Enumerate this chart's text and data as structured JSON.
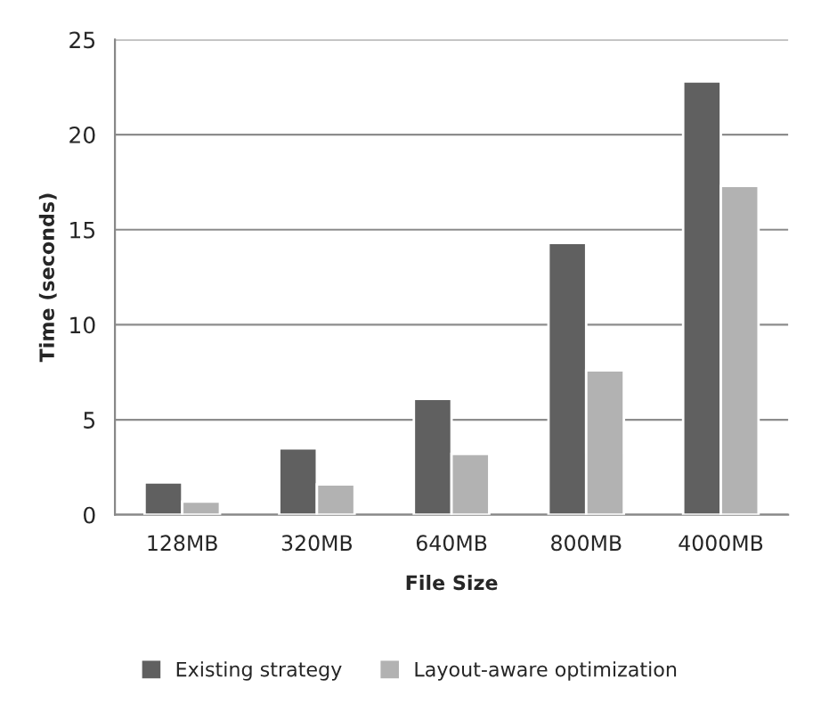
{
  "chart_data": {
    "type": "bar",
    "xlabel": "File Size",
    "ylabel": "Time (seconds)",
    "categories": [
      "128MB",
      "320MB",
      "640MB",
      "800MB",
      "4000MB"
    ],
    "series": [
      {
        "name": "Existing strategy",
        "color": "#606060",
        "values": [
          1.7,
          3.5,
          6.1,
          14.3,
          22.8
        ]
      },
      {
        "name": "Layout-aware optimization",
        "color": "#b2b2b2",
        "values": [
          0.7,
          1.6,
          3.2,
          7.6,
          17.3
        ]
      }
    ],
    "ylim": [
      0,
      25
    ],
    "yticks": [
      0,
      5,
      10,
      15,
      20,
      25
    ],
    "grid": "y",
    "legend": "bottom"
  }
}
